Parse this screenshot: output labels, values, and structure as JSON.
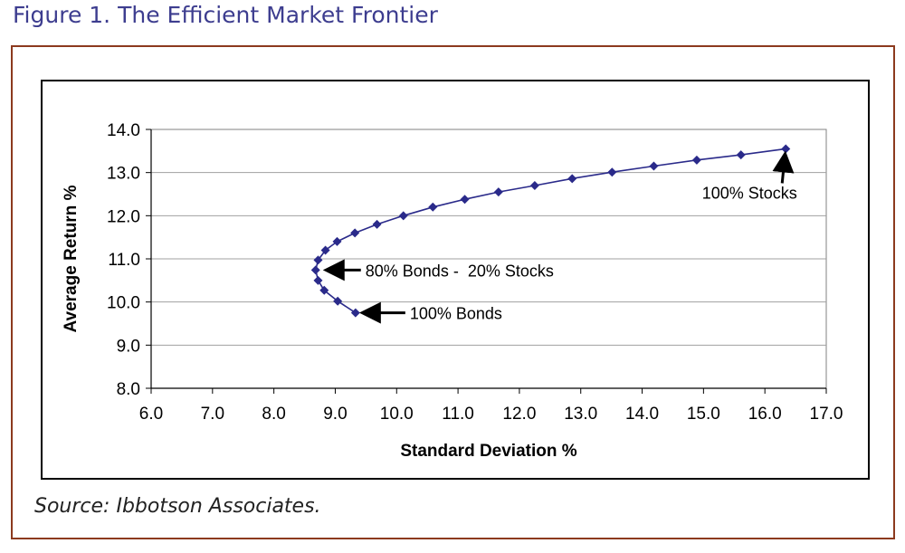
{
  "figure_title": "Figure 1. The Efficient Market Frontier",
  "source_note": "Source: Ibbotson Associates.",
  "colors": {
    "title": "#3d3d8f",
    "frame_border": "#8c3a1e",
    "series": "#2a2a8a",
    "plot_background": "#ffffff",
    "grid": "#a0a0a0"
  },
  "chart_data": {
    "type": "line",
    "title": "",
    "xlabel": "Standard Deviation %",
    "ylabel": "Average Return %",
    "xlim": [
      6.0,
      17.0
    ],
    "ylim": [
      8.0,
      14.0
    ],
    "x_ticks": [
      "6.0",
      "7.0",
      "8.0",
      "9.0",
      "10.0",
      "11.0",
      "12.0",
      "13.0",
      "14.0",
      "15.0",
      "16.0",
      "17.0"
    ],
    "y_ticks": [
      "8.0",
      "9.0",
      "10.0",
      "11.0",
      "12.0",
      "13.0",
      "14.0"
    ],
    "grid": "horizontal",
    "legend": "none",
    "series": [
      {
        "x": [
          9.33,
          9.04,
          8.82,
          8.72,
          8.68,
          8.72,
          8.84,
          9.03,
          9.32,
          9.68,
          10.11,
          10.59,
          11.11,
          11.66,
          12.25,
          12.86,
          13.51,
          14.19,
          14.89,
          15.61,
          16.34
        ],
        "y": [
          9.75,
          10.02,
          10.27,
          10.5,
          10.74,
          10.97,
          11.2,
          11.4,
          11.6,
          11.8,
          12.0,
          12.2,
          12.38,
          12.55,
          12.7,
          12.86,
          13.01,
          13.15,
          13.29,
          13.41,
          13.55
        ]
      }
    ],
    "annotations": [
      {
        "text": "100% Stocks",
        "x": 16.34,
        "y": 13.55
      },
      {
        "text": "80% Bonds -  20% Stocks",
        "x": 8.68,
        "y": 10.74
      },
      {
        "text": "100% Bonds",
        "x": 9.33,
        "y": 9.75
      }
    ]
  }
}
